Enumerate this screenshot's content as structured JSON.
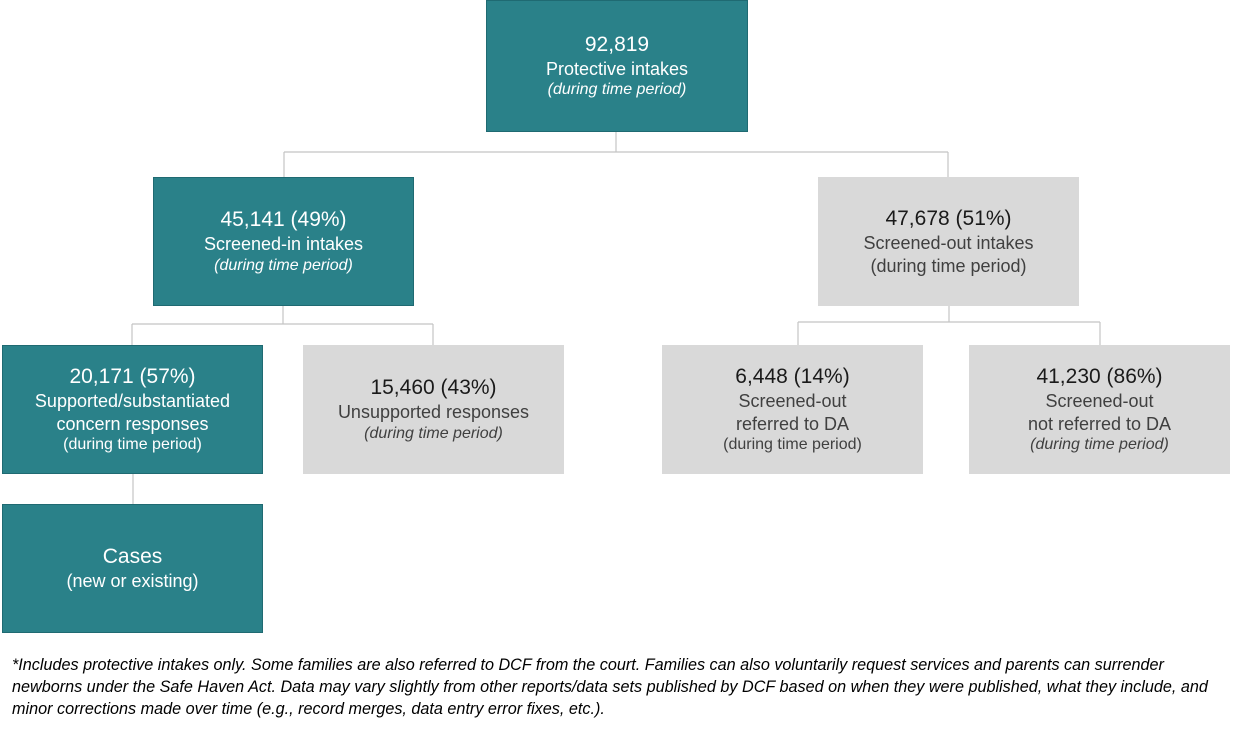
{
  "nodes": {
    "protective_intakes": {
      "value": "92,819",
      "label": "Protective intakes",
      "sub": "(during time period)"
    },
    "screened_in": {
      "value": "45,141 (49%)",
      "label": "Screened-in intakes",
      "sub": "(during time period)"
    },
    "screened_out": {
      "value": "47,678 (51%)",
      "label": "Screened-out intakes",
      "sub": "(during time period)"
    },
    "supported": {
      "value": "20,171 (57%)",
      "label1": "Supported/substantiated",
      "label2": "concern responses",
      "sub": "(during time period)"
    },
    "unsupported": {
      "value": "15,460 (43%)",
      "label": "Unsupported responses",
      "sub": "(during time period)"
    },
    "referred_da": {
      "value": "6,448 (14%)",
      "label1": "Screened-out",
      "label2": "referred to DA",
      "sub": "(during time period)"
    },
    "not_referred_da": {
      "value": "41,230 (86%)",
      "label1": "Screened-out",
      "label2": "not referred to DA",
      "sub": "(during time period)"
    },
    "cases": {
      "label": "Cases",
      "sub": "(new or existing)"
    }
  },
  "footnote": "*Includes protective intakes only.  Some families are also referred to DCF from the court.  Families can also voluntarily request services and parents can surrender newborns under the Safe Haven Act. Data may vary slightly from other reports/data sets published by DCF based on when they were published, what they include, and minor corrections made over time (e.g., record merges, data entry error fixes, etc.).",
  "colors": {
    "teal": "#2a8189",
    "gray": "#d9d9d9",
    "connector": "#c4c4c4"
  }
}
